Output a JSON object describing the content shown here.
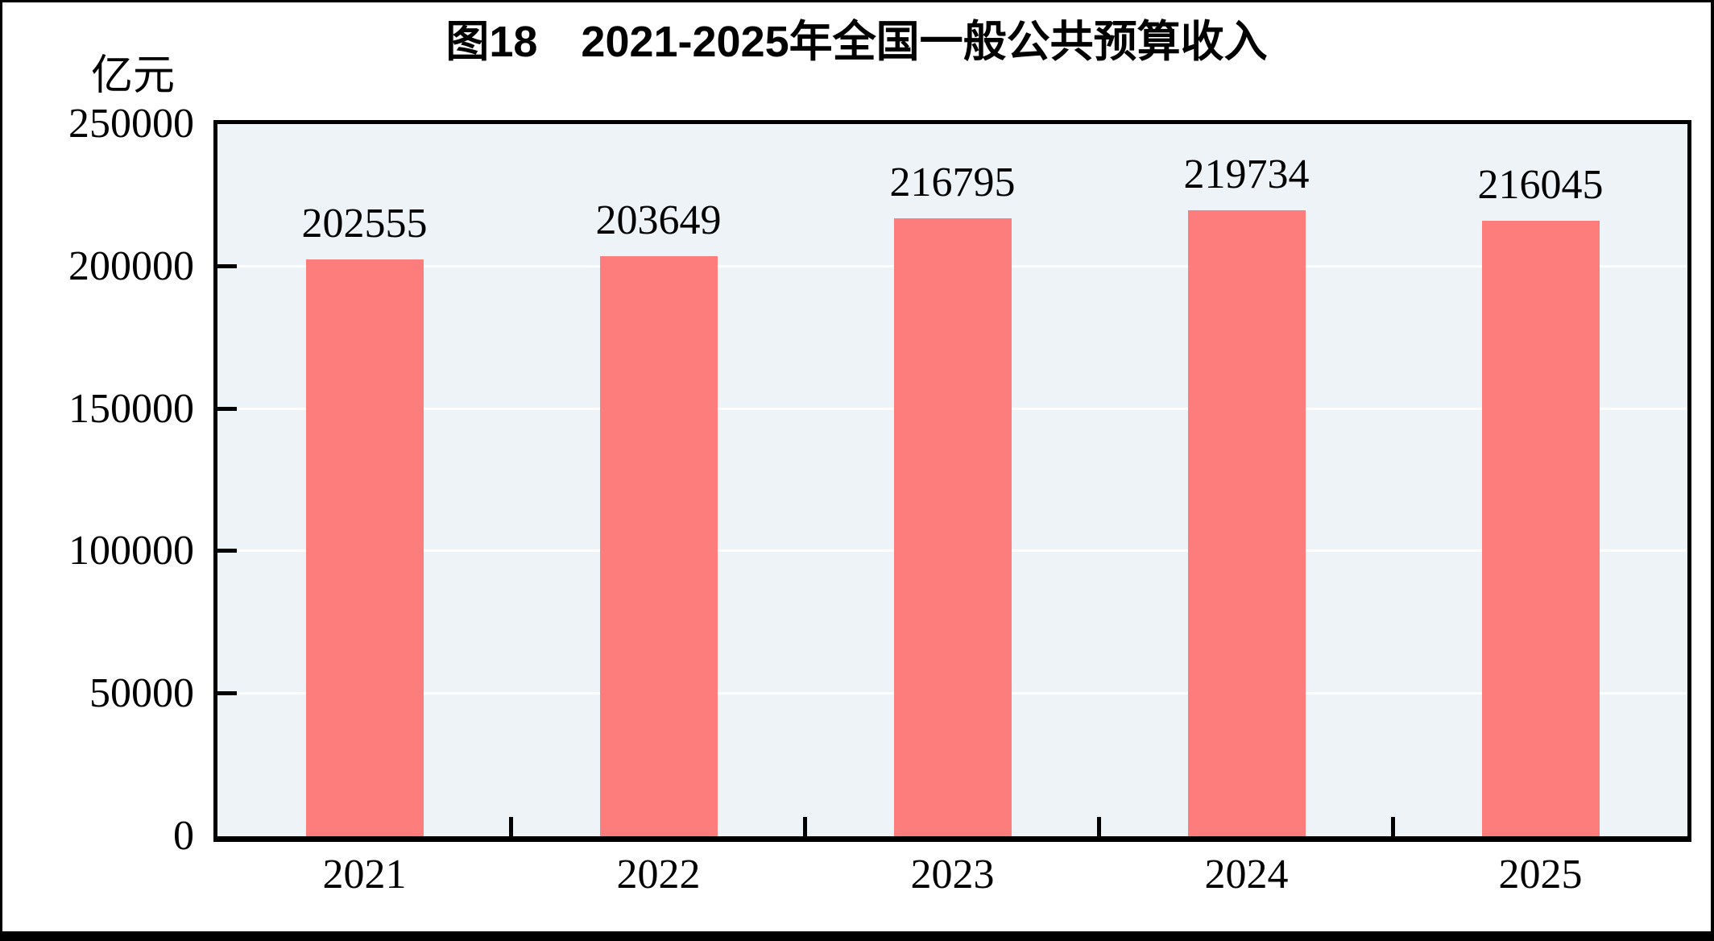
{
  "figure": {
    "title": "图18　2021-2025年全国一般公共预算收入",
    "unit_label": "亿元"
  },
  "chart_data": {
    "type": "bar",
    "title": "图18　2021-2025年全国一般公共预算收入",
    "categories": [
      "2021",
      "2022",
      "2023",
      "2024",
      "2025"
    ],
    "values": [
      202555,
      203649,
      216795,
      219734,
      216045
    ],
    "xlabel": "",
    "ylabel": "亿元",
    "ylim": [
      0,
      250000
    ],
    "y_ticks": [
      250000,
      200000,
      150000,
      100000,
      50000,
      0
    ],
    "grid": true,
    "legend_position": "none",
    "colors": {
      "bar": "#FD7D7D",
      "plot_background": "#EDF3F7",
      "gridline": "#FFFFFF",
      "axis": "#000000",
      "text": "#000000"
    }
  }
}
